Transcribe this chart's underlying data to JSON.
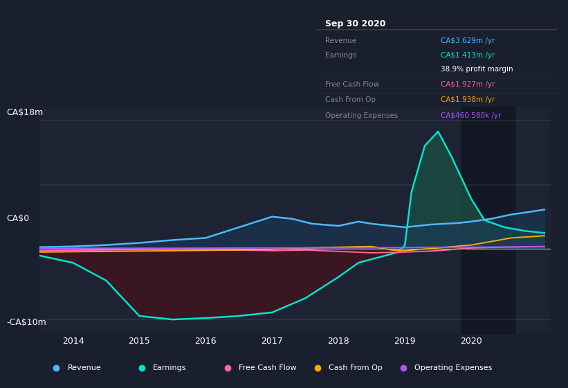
{
  "bg_color": "#1a1f2e",
  "plot_bg_color": "#1e2333",
  "ylabel_top": "CA$18m",
  "ylabel_zero": "CA$0",
  "ylabel_bot": "-CA$10m",
  "x_ticks": [
    2014,
    2015,
    2016,
    2017,
    2018,
    2019,
    2020
  ],
  "x_min": 2013.5,
  "x_max": 2021.2,
  "y_min": -12,
  "y_max": 20,
  "info_box": {
    "title": "Sep 30 2020",
    "rows": [
      {
        "label": "Revenue",
        "value": "CA$3.629m /yr",
        "color": "#4db8ff"
      },
      {
        "label": "Earnings",
        "value": "CA$1.413m /yr",
        "color": "#00e5cc"
      },
      {
        "label": "",
        "value": "38.9% profit margin",
        "color": "#ffffff"
      },
      {
        "label": "Free Cash Flow",
        "value": "CA$1.927m /yr",
        "color": "#ff6699"
      },
      {
        "label": "Cash From Op",
        "value": "CA$1.938m /yr",
        "color": "#ffaa00"
      },
      {
        "label": "Operating Expenses",
        "value": "CA$460.580k /yr",
        "color": "#aa55ff"
      }
    ]
  },
  "legend": [
    {
      "label": "Revenue",
      "color": "#4db8ff"
    },
    {
      "label": "Earnings",
      "color": "#00e5cc"
    },
    {
      "label": "Free Cash Flow",
      "color": "#ff6699"
    },
    {
      "label": "Cash From Op",
      "color": "#ffaa00"
    },
    {
      "label": "Operating Expenses",
      "color": "#aa55ff"
    }
  ],
  "revenue_x": [
    2013.5,
    2014.0,
    2014.5,
    2015.0,
    2015.5,
    2016.0,
    2016.5,
    2017.0,
    2017.3,
    2017.6,
    2018.0,
    2018.3,
    2018.5,
    2018.8,
    2019.0,
    2019.2,
    2019.4,
    2019.6,
    2019.8,
    2020.0,
    2020.3,
    2020.6,
    2020.9,
    2021.1
  ],
  "revenue_y": [
    0.2,
    0.3,
    0.5,
    0.8,
    1.2,
    1.5,
    3.0,
    4.5,
    4.2,
    3.5,
    3.2,
    3.8,
    3.5,
    3.2,
    3.0,
    3.2,
    3.4,
    3.5,
    3.6,
    3.8,
    4.2,
    4.8,
    5.2,
    5.5
  ],
  "earnings_x": [
    2013.5,
    2014.0,
    2014.5,
    2015.0,
    2015.5,
    2016.0,
    2016.5,
    2017.0,
    2017.5,
    2018.0,
    2018.3,
    2018.5,
    2018.7,
    2018.9,
    2019.0,
    2019.1,
    2019.3,
    2019.5,
    2019.7,
    2019.9,
    2020.0,
    2020.2,
    2020.5,
    2020.8,
    2021.1
  ],
  "earnings_y": [
    -1.0,
    -2.0,
    -4.5,
    -9.5,
    -10.0,
    -9.8,
    -9.5,
    -9.0,
    -7.0,
    -4.0,
    -2.0,
    -1.5,
    -1.0,
    -0.5,
    0.5,
    8.0,
    14.5,
    16.5,
    13.0,
    9.0,
    7.0,
    4.0,
    3.0,
    2.5,
    2.2
  ],
  "fcf_x": [
    2013.5,
    2014.5,
    2015.5,
    2016.5,
    2017.0,
    2017.5,
    2018.0,
    2018.5,
    2019.0,
    2019.5,
    2020.0,
    2020.5,
    2021.1
  ],
  "fcf_y": [
    -0.3,
    -0.2,
    -0.1,
    -0.2,
    -0.3,
    -0.2,
    -0.4,
    -0.6,
    -0.5,
    -0.3,
    0.1,
    0.2,
    0.3
  ],
  "cashfromop_x": [
    2013.5,
    2014.5,
    2015.5,
    2016.5,
    2017.0,
    2017.5,
    2018.0,
    2018.5,
    2018.8,
    2019.0,
    2019.5,
    2020.0,
    2020.3,
    2020.6,
    2021.1
  ],
  "cashfromop_y": [
    -0.5,
    -0.4,
    -0.3,
    -0.2,
    -0.1,
    0.1,
    0.2,
    0.3,
    -0.2,
    -0.3,
    0.1,
    0.5,
    1.0,
    1.5,
    1.8
  ],
  "opex_x": [
    2013.5,
    2014.5,
    2015.5,
    2016.5,
    2017.5,
    2018.5,
    2019.0,
    2019.5,
    2020.0,
    2020.5,
    2021.1
  ],
  "opex_y": [
    0.05,
    0.05,
    0.05,
    0.08,
    0.1,
    0.12,
    0.15,
    0.18,
    0.2,
    0.22,
    0.25
  ]
}
